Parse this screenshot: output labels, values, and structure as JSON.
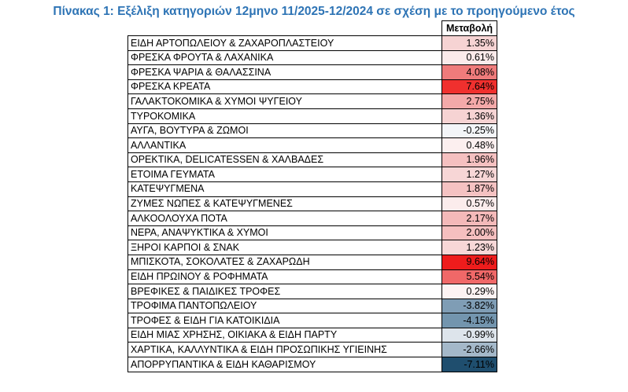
{
  "title": "Πίνακας 1: Εξέλιξη κατηγοριών 12μηνο 11/2025-12/2024 σε σχέση με το προηγούμενο έτος",
  "table": {
    "header": "Μεταβολή",
    "rows": [
      [
        "ΕΙΔΗ ΑΡΤΟΠΩΛΕΙΟΥ & ΖΑΧΑΡΟΠΛΑΣΤΕΙΟΥ",
        "1.35%"
      ],
      [
        "ΦΡΕΣΚΑ ΦΡΟΥΤΑ & ΛΑΧΑΝΙΚΑ",
        "0.61%"
      ],
      [
        "ΦΡΕΣΚΑ ΨΑΡΙΑ & ΘΑΛΑΣΣΙΝΑ",
        "4.08%"
      ],
      [
        "ΦΡΕΣΚΑ ΚΡΕΑΤΑ",
        "7.64%"
      ],
      [
        "ΓΑΛΑΚΤΟΚΟΜΙΚΑ & ΧΥΜΟΙ ΨΥΓΕΙΟΥ",
        "2.75%"
      ],
      [
        "ΤΥΡΟΚΟΜΙΚΑ",
        "1.36%"
      ],
      [
        "ΑΥΓΑ, ΒΟΥΤΥΡΑ & ΖΩΜΟΙ",
        "-0.25%"
      ],
      [
        "ΑΛΛΑΝΤΙΚΑ",
        "0.48%"
      ],
      [
        "ΟΡΕΚΤΙΚΑ, DELICATESSEN & ΧΑΛΒΑΔΕΣ",
        "1.96%"
      ],
      [
        "ΕΤΟΙΜΑ ΓΕΥΜΑΤΑ",
        "1.27%"
      ],
      [
        "ΚΑΤΕΨΥΓΜΕΝΑ",
        "1.87%"
      ],
      [
        "ΖΥΜΕΣ ΝΩΠΕΣ & ΚΑΤΕΨΥΓΜΕΝΕΣ",
        "0.57%"
      ],
      [
        "ΑΛΚΟΟΛΟΥΧΑ ΠΟΤΑ",
        "2.17%"
      ],
      [
        "ΝΕΡΑ, ΑΝΑΨΥΚΤΙΚΑ & ΧΥΜΟΙ",
        "2.00%"
      ],
      [
        "ΞΗΡΟΙ ΚΑΡΠΟΙ & ΣΝΑΚ",
        "1.23%"
      ],
      [
        "ΜΠΙΣΚΟΤΑ, ΣΟΚΟΛΑΤΕΣ & ΖΑΧΑΡΩΔΗ",
        "9.64%"
      ],
      [
        "ΕΙΔΗ ΠΡΩΙΝΟΥ & ΡΟΦΗΜΑΤΑ",
        "5.54%"
      ],
      [
        "ΒΡΕΦΙΚΕΣ & ΠΑΙΔΙΚΕΣ ΤΡΟΦΕΣ",
        "0.29%"
      ],
      [
        "ΤΡΟΦΙΜΑ ΠΑΝΤΟΠΩΛΕΙΟΥ",
        "-3.82%"
      ],
      [
        "ΤΡΟΦΕΣ & ΕΙΔΗ ΓΙΑ ΚΑΤΟΙΚΙΔΙΑ",
        "-4.15%"
      ],
      [
        "ΕΙΔΗ ΜΙΑΣ ΧΡΗΣΗΣ, ΟΙΚΙΑΚΑ & ΕΙΔΗ ΠΑΡΤΥ",
        "-0.99%"
      ],
      [
        "ΧΑΡΤΙΚΑ, ΚΑΛΛΥΝΤΙΚΑ & ΕΙΔΗ ΠΡΟΣΩΠΙΚΗΣ ΥΓΙΕΙΝΗΣ",
        "-2.66%"
      ],
      [
        "ΑΠΟΡΡΥΠΑΝΤΙΚΑ & ΕΙΔΗ ΚΑΘΑΡΙΣΜΟΥ",
        "-7.11%"
      ]
    ],
    "colors": [
      "#f6d3d3",
      "#fbeaea",
      "#ef7b7b",
      "#f0302e",
      "#f3a9a9",
      "#f6d3d3",
      "#f3f5f8",
      "#fcefef",
      "#f5c0c0",
      "#f7d6d6",
      "#f5c2c2",
      "#fbecec",
      "#f4b9b9",
      "#f5bfbf",
      "#f7d7d7",
      "#ee1c1c",
      "#f06868",
      "#fdf3f3",
      "#7f9db5",
      "#7395ae",
      "#dde4eb",
      "#a4b8c9",
      "#1f4e6e"
    ]
  }
}
